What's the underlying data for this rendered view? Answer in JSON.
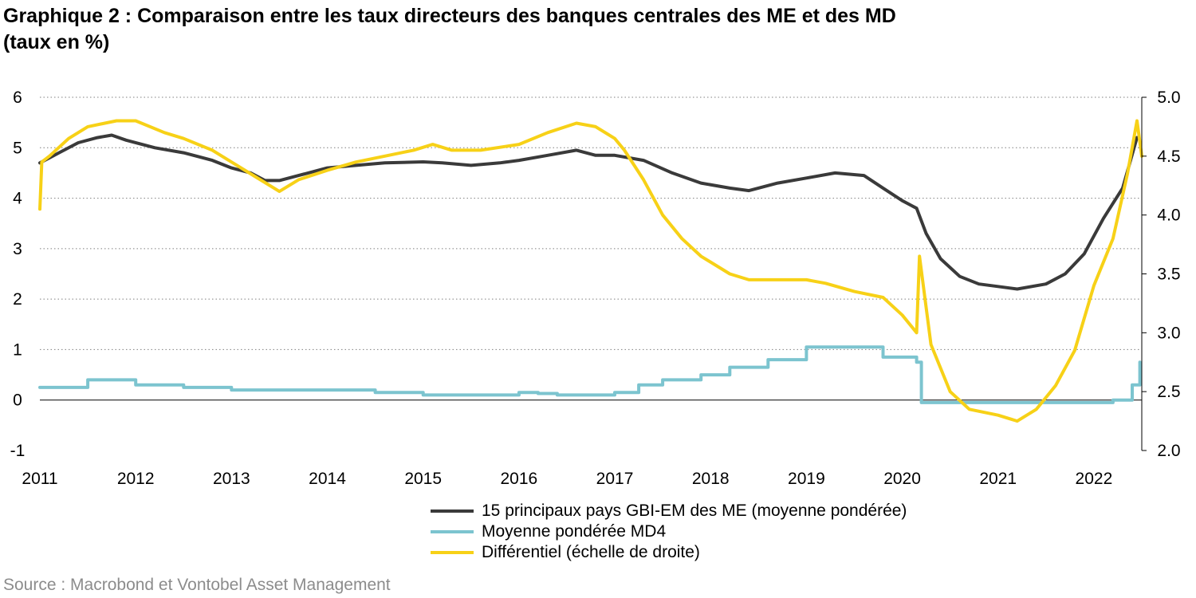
{
  "header": {
    "title_line1": "Graphique 2 : Comparaison entre les taux directeurs des banques centrales des ME et des MD",
    "title_line2": "(taux en %)"
  },
  "source": "Source : Macrobond et Vontobel Asset Management",
  "colors": {
    "em": "#3a3a3a",
    "dm": "#7cc4cf",
    "diff": "#f7d117",
    "grid": "#7f7f7f"
  },
  "chart_data": {
    "type": "line",
    "title": "Graphique 2 : Comparaison entre les taux directeurs des banques centrales des ME et des MD (taux en %)",
    "x_ticks": [
      2011,
      2012,
      2013,
      2014,
      2015,
      2016,
      2017,
      2018,
      2019,
      2020,
      2021,
      2022
    ],
    "xlim": [
      2011.0,
      2022.5
    ],
    "y_left": {
      "lim": [
        -1,
        6
      ],
      "ticks": [
        "-1",
        "0",
        "1",
        "2",
        "3",
        "4",
        "5",
        "6"
      ]
    },
    "y_right": {
      "lim": [
        2.0,
        5.0
      ],
      "ticks": [
        "2.0",
        "2.5",
        "3.0",
        "3.5",
        "4.0",
        "4.5",
        "5.0"
      ]
    },
    "grid": "horizontal dotted",
    "legend_position": "bottom",
    "series": [
      {
        "name": "15 principaux pays GBI-EM des ME (moyenne pondérée)",
        "axis": "left",
        "x": [
          2011.0,
          2011.2,
          2011.4,
          2011.6,
          2011.75,
          2011.9,
          2012.2,
          2012.5,
          2012.8,
          2013.0,
          2013.2,
          2013.35,
          2013.5,
          2013.7,
          2014.0,
          2014.3,
          2014.6,
          2015.0,
          2015.2,
          2015.5,
          2015.8,
          2016.0,
          2016.3,
          2016.6,
          2016.8,
          2017.0,
          2017.3,
          2017.6,
          2017.9,
          2018.2,
          2018.4,
          2018.7,
          2019.0,
          2019.3,
          2019.6,
          2019.8,
          2020.0,
          2020.15,
          2020.25,
          2020.4,
          2020.6,
          2020.8,
          2021.0,
          2021.2,
          2021.5,
          2021.7,
          2021.9,
          2022.1,
          2022.3,
          2022.45
        ],
        "values": [
          4.7,
          4.9,
          5.1,
          5.2,
          5.25,
          5.15,
          5.0,
          4.9,
          4.75,
          4.6,
          4.5,
          4.35,
          4.35,
          4.45,
          4.6,
          4.65,
          4.7,
          4.72,
          4.7,
          4.65,
          4.7,
          4.75,
          4.85,
          4.95,
          4.85,
          4.85,
          4.75,
          4.5,
          4.3,
          4.2,
          4.15,
          4.3,
          4.4,
          4.5,
          4.45,
          4.2,
          3.95,
          3.8,
          3.3,
          2.8,
          2.45,
          2.3,
          2.25,
          2.2,
          2.3,
          2.5,
          2.9,
          3.6,
          4.2,
          5.2
        ]
      },
      {
        "name": "Moyenne pondérée MD4",
        "axis": "left",
        "x": [
          2011.0,
          2011.25,
          2011.5,
          2011.85,
          2012.0,
          2012.5,
          2013.0,
          2014.0,
          2014.5,
          2015.0,
          2015.9,
          2016.0,
          2016.2,
          2016.4,
          2016.8,
          2017.0,
          2017.25,
          2017.5,
          2017.9,
          2018.2,
          2018.6,
          2019.0,
          2019.6,
          2019.8,
          2020.15,
          2020.2,
          2020.5,
          2021.0,
          2021.5,
          2022.0,
          2022.2,
          2022.4,
          2022.48
        ],
        "values": [
          0.25,
          0.25,
          0.4,
          0.4,
          0.3,
          0.25,
          0.2,
          0.2,
          0.15,
          0.1,
          0.1,
          0.15,
          0.13,
          0.1,
          0.1,
          0.15,
          0.3,
          0.4,
          0.5,
          0.65,
          0.8,
          1.05,
          1.05,
          0.85,
          0.75,
          -0.05,
          -0.05,
          -0.05,
          -0.05,
          -0.05,
          0.0,
          0.3,
          0.75
        ]
      },
      {
        "name": "Différentiel (échelle de droite)",
        "axis": "right",
        "x": [
          2011.0,
          2011.02,
          2011.1,
          2011.3,
          2011.5,
          2011.8,
          2012.0,
          2012.3,
          2012.5,
          2012.8,
          2013.0,
          2013.2,
          2013.5,
          2013.7,
          2014.0,
          2014.3,
          2014.6,
          2014.9,
          2015.1,
          2015.3,
          2015.6,
          2016.0,
          2016.3,
          2016.6,
          2016.8,
          2017.0,
          2017.1,
          2017.3,
          2017.5,
          2017.7,
          2017.9,
          2018.2,
          2018.4,
          2018.7,
          2019.0,
          2019.2,
          2019.5,
          2019.8,
          2020.0,
          2020.15,
          2020.18,
          2020.3,
          2020.5,
          2020.7,
          2021.0,
          2021.2,
          2021.4,
          2021.6,
          2021.8,
          2022.0,
          2022.2,
          2022.35,
          2022.45,
          2022.5
        ],
        "values": [
          4.05,
          4.45,
          4.5,
          4.65,
          4.75,
          4.8,
          4.8,
          4.7,
          4.65,
          4.55,
          4.45,
          4.35,
          4.2,
          4.3,
          4.38,
          4.45,
          4.5,
          4.55,
          4.6,
          4.55,
          4.55,
          4.6,
          4.7,
          4.78,
          4.75,
          4.65,
          4.55,
          4.3,
          4.0,
          3.8,
          3.65,
          3.5,
          3.45,
          3.45,
          3.45,
          3.42,
          3.35,
          3.3,
          3.15,
          3.0,
          3.65,
          2.9,
          2.5,
          2.35,
          2.3,
          2.25,
          2.35,
          2.55,
          2.85,
          3.4,
          3.8,
          4.35,
          4.8,
          4.5
        ]
      }
    ]
  }
}
